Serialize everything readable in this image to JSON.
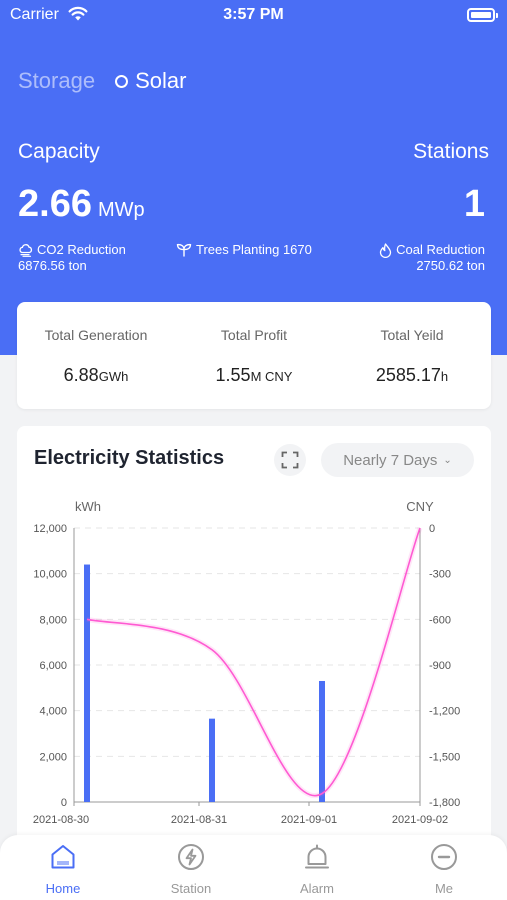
{
  "status_bar": {
    "carrier": "Carrier",
    "time": "3:57 PM"
  },
  "mode_tabs": {
    "storage": "Storage",
    "solar": "Solar"
  },
  "overview": {
    "capacity_label": "Capacity",
    "capacity_value": "2.66",
    "capacity_unit": "MWp",
    "stations_label": "Stations",
    "stations_value": "1",
    "co2_label": "CO2 Reduction",
    "co2_value": "6876.56 ton",
    "trees_label": "Trees Planting 1670",
    "coal_label": "Coal Reduction",
    "coal_value": "2750.62 ton"
  },
  "summary": [
    {
      "label": "Total Generation",
      "value": "6.88",
      "unit": "GWh"
    },
    {
      "label": "Total Profit",
      "value": "1.55",
      "unit": "M CNY"
    },
    {
      "label": "Total Yeild",
      "value": "2585.17",
      "unit": "h"
    }
  ],
  "chart_header": {
    "title": "Electricity Statistics",
    "range": "Nearly 7 Days"
  },
  "chart_data": {
    "type": "bar",
    "categories": [
      "2021-08-30",
      "2021-08-31",
      "2021-09-01",
      "2021-09-02"
    ],
    "series": [
      {
        "type": "bar",
        "axis": "left",
        "values": [
          10400,
          3650,
          5300,
          0
        ]
      },
      {
        "type": "line",
        "axis": "right",
        "values": [
          -600,
          -800,
          -1745,
          0
        ]
      }
    ],
    "ylabel_left": "kWh",
    "ylabel_right": "CNY",
    "yticks_left": [
      "12,000",
      "10,000",
      "8,000",
      "6,000",
      "4,000",
      "2,000",
      "0"
    ],
    "yticks_right": [
      "0",
      "-300",
      "-600",
      "-900",
      "-1,200",
      "-1,500",
      "-1,800"
    ],
    "ylim_left": [
      0,
      12000
    ],
    "ylim_right": [
      -1800,
      0
    ],
    "grid": true,
    "colors": {
      "bar": "#4a6ef5",
      "line": "#ff5ad2"
    }
  },
  "tabbar": [
    {
      "label": "Home",
      "icon": "home-icon",
      "active": true
    },
    {
      "label": "Station",
      "icon": "lightning-icon",
      "active": false
    },
    {
      "label": "Alarm",
      "icon": "bell-icon",
      "active": false
    },
    {
      "label": "Me",
      "icon": "user-icon",
      "active": false
    }
  ],
  "colors": {
    "primary": "#4a6ef5",
    "background": "#f2f3f5"
  }
}
